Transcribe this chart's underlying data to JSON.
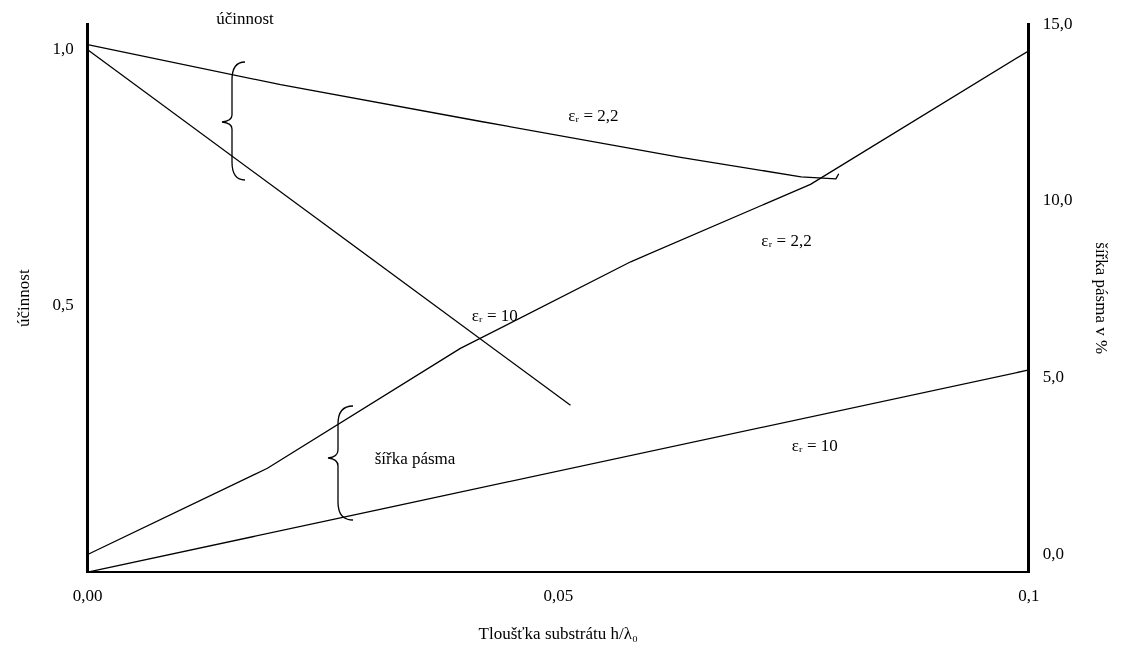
{
  "chart_data": {
    "type": "line",
    "xlabel": "Tloušťka substrátu h/λ₀",
    "ylabel": "účinnost",
    "y2label": "šířka pásma v %",
    "xlim": [
      0,
      0.1
    ],
    "xticks": [
      {
        "value": 0,
        "label": "0,00"
      },
      {
        "value": 0.05,
        "label": "0,05"
      },
      {
        "value": 0.1,
        "label": "0,1"
      }
    ],
    "ylim": [
      -0.02,
      1.05
    ],
    "yticks": [
      {
        "value": 0.5,
        "label": "0,5"
      },
      {
        "value": 1,
        "label": "1,0"
      }
    ],
    "y2lim": [
      -0.5,
      15
    ],
    "y2ticks": [
      {
        "value": 0,
        "label": "0,0"
      },
      {
        "value": 5,
        "label": "5,0"
      },
      {
        "value": 10,
        "label": "10,0"
      },
      {
        "value": 15,
        "label": "15,0"
      }
    ],
    "series": [
      {
        "name": "εᵣ = 2,2",
        "color": "#000000",
        "x": [
          0,
          0.0205,
          0.0418,
          0.063,
          0.0758,
          0.0795,
          0.0798
        ],
        "values": [
          1.01,
          0.932,
          0.86,
          0.79,
          0.752,
          0.748,
          0.758
        ]
      },
      {
        "name": "εᵣ = 10",
        "color": "#000000",
        "x": [
          0,
          0.0513
        ],
        "values": [
          1.0,
          0.306
        ]
      },
      {
        "name": "εᵣ = 2,2",
        "color": "#000000",
        "axis": "y2",
        "x": [
          0,
          0.0191,
          0.0396,
          0.0577,
          0.0768,
          0.1
        ],
        "values": [
          0,
          2.44,
          5.83,
          8.28,
          10.47,
          14.25
        ]
      },
      {
        "name": "εᵣ = 10",
        "color": "#000000",
        "axis": "y2",
        "x": [
          0,
          0.1
        ],
        "values": [
          -0.5,
          5.22
        ]
      }
    ],
    "annotations": [
      "účinnost",
      "šířka pásma"
    ],
    "legend": false,
    "grid": false,
    "marker": "none",
    "line_style": "solid"
  }
}
